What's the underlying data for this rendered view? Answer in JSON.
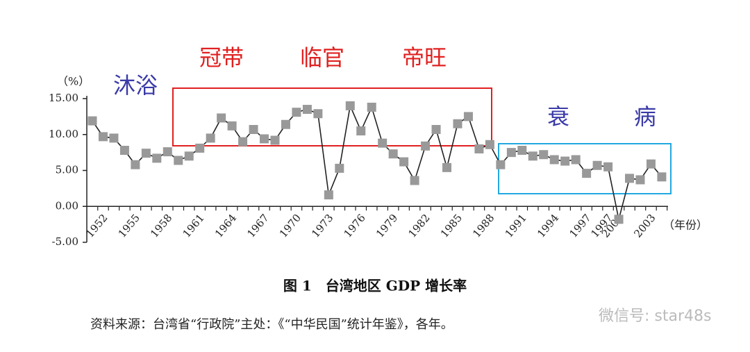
{
  "chart_data": {
    "type": "line",
    "title": "图 1　台湾地区 GDP 增长率",
    "source": "资料来源：台湾省“行政院”主处：《“中华民国”统计年鉴》，各年。",
    "watermark": "微信号: star48s",
    "y_label": "（%）",
    "x_label": "（年份）",
    "annotations": [
      "沐浴",
      "冠带",
      "临官",
      "帝旺",
      "衰",
      "病"
    ],
    "categories": [
      null,
      "1952",
      null,
      null,
      "1955",
      null,
      null,
      "1958",
      null,
      null,
      "1961",
      null,
      null,
      "1964",
      null,
      null,
      "1967",
      null,
      null,
      "1970",
      null,
      null,
      "1973",
      null,
      null,
      "1976",
      null,
      null,
      "1979",
      null,
      null,
      "1982",
      null,
      null,
      "1985",
      null,
      null,
      "1988",
      null,
      null,
      "1991",
      null,
      null,
      "1994",
      null,
      null,
      "1997",
      null,
      "1997",
      "2000",
      null,
      null,
      "2003",
      null
    ],
    "series": [
      {
        "name": "GDP",
        "color": "#222222",
        "marker_color": "#999999",
        "values": [
          11.9,
          9.7,
          9.5,
          7.8,
          5.8,
          7.4,
          6.7,
          7.6,
          6.4,
          7.0,
          8.1,
          9.5,
          12.3,
          11.2,
          9.0,
          10.7,
          9.4,
          9.2,
          11.4,
          13.1,
          13.5,
          12.9,
          1.6,
          5.3,
          14.0,
          10.5,
          13.8,
          8.8,
          7.3,
          6.2,
          3.6,
          8.4,
          10.7,
          5.4,
          11.5,
          12.5,
          8.0,
          8.6,
          5.8,
          7.5,
          7.8,
          7.0,
          7.2,
          6.5,
          6.3,
          6.5,
          4.6,
          5.7,
          5.5,
          -1.8,
          3.9,
          3.7,
          5.9,
          4.1
        ]
      }
    ],
    "ylim": [
      -5,
      15
    ],
    "yticks": [
      {
        "value": -5,
        "label": "-5.00"
      },
      {
        "value": 0,
        "label": "0.00"
      },
      {
        "value": 5,
        "label": "5.00"
      },
      {
        "value": 10,
        "label": "10.00"
      },
      {
        "value": 15,
        "label": "15.00"
      }
    ],
    "grid": false
  }
}
